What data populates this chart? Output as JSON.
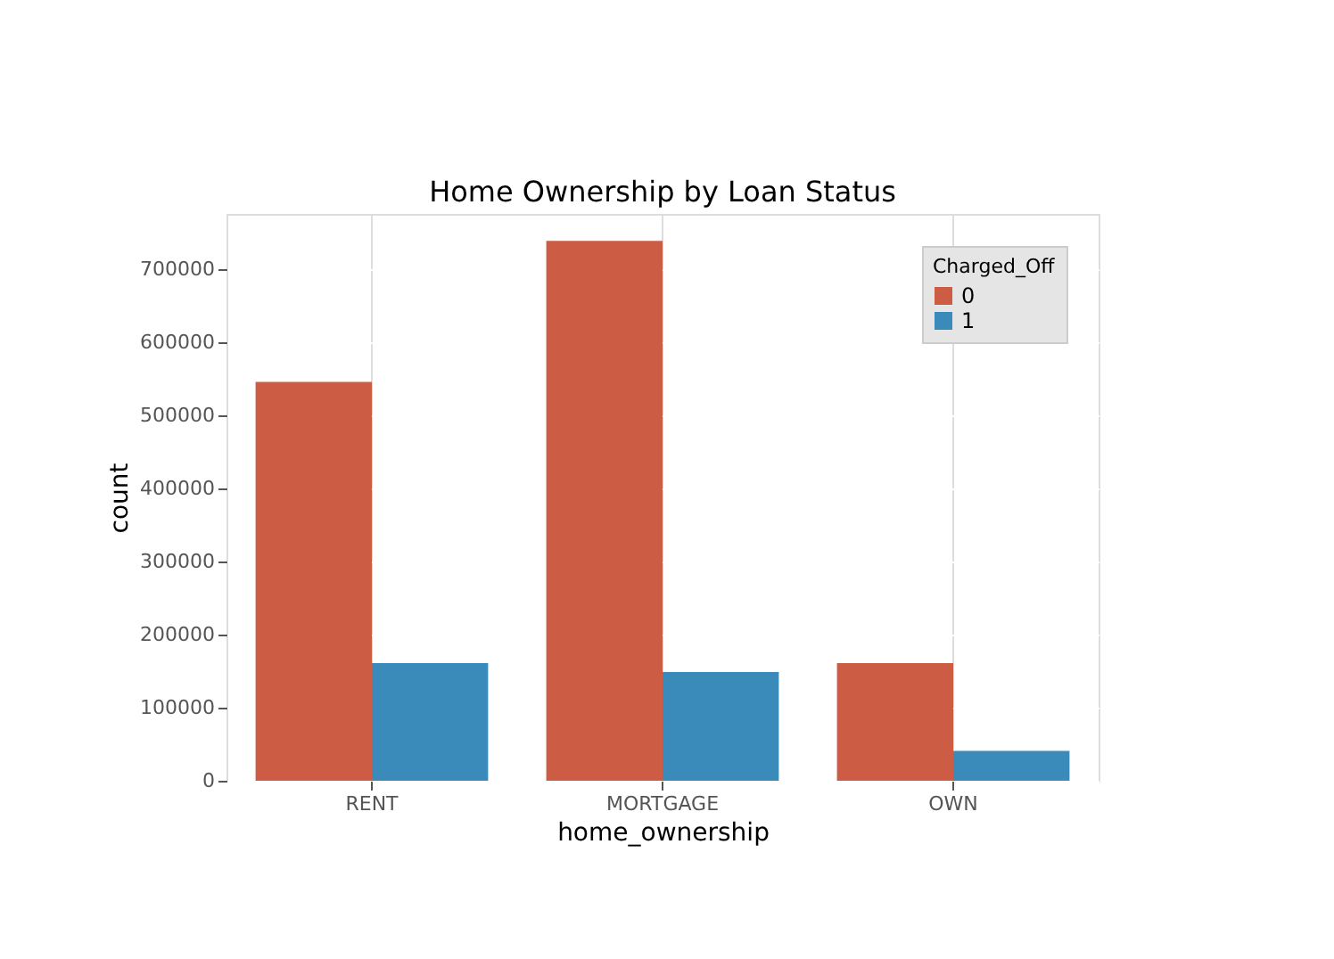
{
  "chart_data": {
    "type": "bar",
    "title": "Home Ownership by Loan Status",
    "xlabel": "home_ownership",
    "ylabel": "count",
    "legend_title": "Charged_Off",
    "categories": [
      "RENT",
      "MORTGAGE",
      "OWN"
    ],
    "series": [
      {
        "name": "0",
        "color": "#cd5c45",
        "values": [
          546000,
          739000,
          161000
        ]
      },
      {
        "name": "1",
        "color": "#3b8bba",
        "values": [
          161000,
          149000,
          41000
        ]
      }
    ],
    "ylim": [
      0,
      776000
    ],
    "yticks": [
      0,
      100000,
      200000,
      300000,
      400000,
      500000,
      600000,
      700000
    ],
    "grid": true,
    "legend": "top right"
  }
}
